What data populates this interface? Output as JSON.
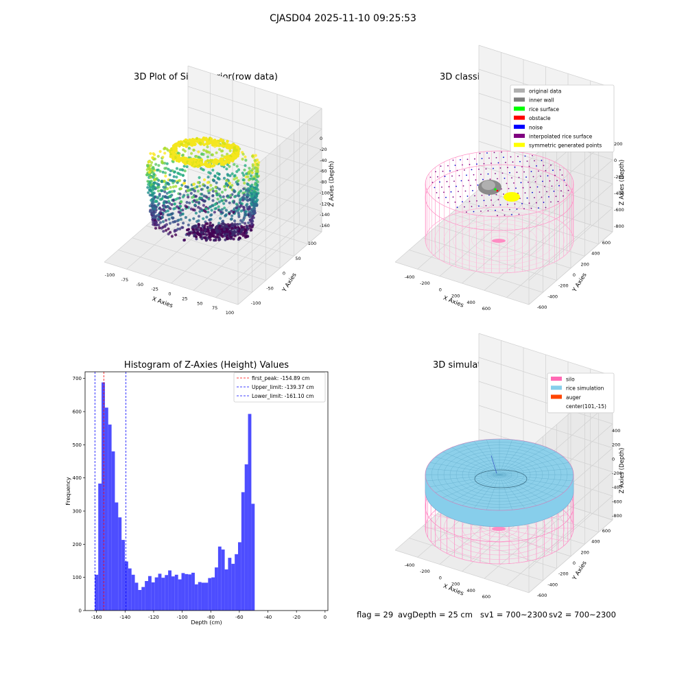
{
  "figure": {
    "suptitle": "CJASD04 2025-11-10 09:25:53",
    "footer": [
      "flag = 29",
      "avgDepth = 25 cm",
      "sv1 = 700~2300",
      "sv2 = 700~2300"
    ]
  },
  "chart_data": [
    {
      "type": "scatter",
      "projection": "3d",
      "title": "3D Plot of Silo Interior(row data)",
      "xlabel": "X Axies",
      "ylabel": "Y Axies",
      "zlabel": "Z Axies (Depth)",
      "xticks": [
        -100,
        -75,
        -50,
        -25,
        0,
        25,
        50,
        75,
        100
      ],
      "yticks": [
        -100,
        -50,
        0,
        50,
        100
      ],
      "zticks": [
        0,
        -20,
        -40,
        -60,
        -80,
        -100,
        -120,
        -140,
        -160
      ],
      "colormap": "viridis"
    },
    {
      "type": "scatter",
      "projection": "3d",
      "title": "3D classify of Silo Interior",
      "xlabel": "X Axies",
      "ylabel": "Y Axies",
      "zlabel": "Z Axies (Depth)",
      "xticks": [
        -400,
        -200,
        0,
        200,
        400,
        600
      ],
      "yticks": [
        -600,
        -400,
        -200,
        0,
        200,
        400,
        600
      ],
      "zticks": [
        200,
        0,
        -200,
        -400,
        -600,
        -800
      ],
      "legend_position": "top-right",
      "legend": [
        {
          "label": "original data",
          "color": "#b0b0b0"
        },
        {
          "label": "inner wall",
          "color": "#808080"
        },
        {
          "label": "rice surface",
          "color": "#00ff00"
        },
        {
          "label": "obstacle",
          "color": "#ff0000"
        },
        {
          "label": "noise",
          "color": "#0000ff"
        },
        {
          "label": "interpolated rice surface",
          "color": "#800080"
        },
        {
          "label": "symmetric generated points",
          "color": "#ffff00"
        }
      ]
    },
    {
      "type": "bar",
      "title": "Histogram of Z-Axies (Height) Values",
      "xlabel": "Depth (cm)",
      "ylabel": "Frequency",
      "xlim": [
        -168,
        2
      ],
      "ylim": [
        0,
        720
      ],
      "xticks": [
        -160,
        -140,
        -120,
        -100,
        -80,
        -60,
        -40,
        -20,
        0
      ],
      "yticks": [
        0,
        100,
        200,
        300,
        400,
        500,
        600,
        700
      ],
      "bin_width": 2.33,
      "bar_color": "#4d4dff",
      "bin_start": -161.1,
      "values": [
        108,
        383,
        688,
        612,
        561,
        480,
        326,
        281,
        213,
        148,
        127,
        108,
        84,
        62,
        71,
        89,
        104,
        85,
        100,
        111,
        99,
        107,
        121,
        103,
        108,
        94,
        113,
        110,
        109,
        114,
        79,
        86,
        84,
        84,
        98,
        100,
        130,
        193,
        184,
        124,
        159,
        141,
        170,
        206,
        357,
        441,
        593,
        322
      ],
      "reference_lines": [
        {
          "label": "first_peak: -154.89 cm",
          "x": -154.89,
          "color": "#ff0000"
        },
        {
          "label": "Upper_limit: -139.37 cm",
          "x": -139.37,
          "color": "#0000ff"
        },
        {
          "label": "Lower_limit: -161.10 cm",
          "x": -161.1,
          "color": "#0000ff"
        }
      ],
      "legend_position": "top-right"
    },
    {
      "type": "scatter",
      "projection": "3d",
      "title": "3D simulation of Silo Interior",
      "xlabel": "X Axies",
      "ylabel": "Y Axies",
      "zlabel": "Z Axies (Depth)",
      "xticks": [
        -400,
        -200,
        0,
        200,
        400,
        600
      ],
      "yticks": [
        -600,
        -400,
        -200,
        0,
        200,
        400,
        600
      ],
      "zticks": [
        400,
        200,
        0,
        -200,
        -400,
        -600,
        -800
      ],
      "legend_position": "top-right",
      "legend": [
        {
          "label": "silo",
          "color": "#ff69b4"
        },
        {
          "label": "rice simulation",
          "color": "#87ceeb"
        },
        {
          "label": "auger",
          "color": "#ff4500"
        },
        {
          "label": "center(101,-15)",
          "color": ""
        }
      ]
    }
  ]
}
